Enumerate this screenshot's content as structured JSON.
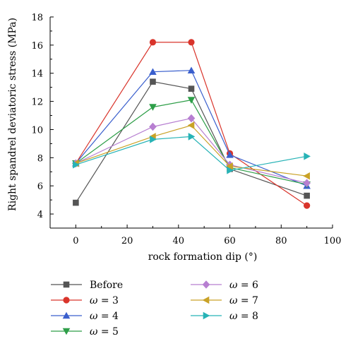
{
  "chart_data": {
    "type": "line",
    "xlabel": "rock formation dip (°)",
    "ylabel": "Right spandrel deviatoric stress (MPa)",
    "xlim": [
      -10,
      100
    ],
    "ylim": [
      3,
      18
    ],
    "xticks": [
      0,
      20,
      40,
      60,
      80,
      100
    ],
    "yticks": [
      4,
      6,
      8,
      10,
      12,
      14,
      16,
      18
    ],
    "x": [
      0,
      30,
      45,
      60,
      90
    ],
    "grid": false,
    "legend_position": "bottom",
    "series": [
      {
        "name": "Before",
        "label_prefix": "",
        "label_value": "Before",
        "color": "#555555",
        "marker": "square",
        "values": [
          4.8,
          13.4,
          12.9,
          7.2,
          5.3
        ]
      },
      {
        "name": "ω = 3",
        "label_prefix": "ω",
        "label_value": " = 3",
        "color": "#d9342b",
        "marker": "circle",
        "values": [
          7.6,
          16.2,
          16.2,
          8.3,
          4.6
        ]
      },
      {
        "name": "ω = 4",
        "label_prefix": "ω",
        "label_value": " = 4",
        "color": "#3a5fcd",
        "marker": "triangle-up",
        "values": [
          7.6,
          14.1,
          14.2,
          8.2,
          6.0
        ]
      },
      {
        "name": "ω = 5",
        "label_prefix": "ω",
        "label_value": " = 5",
        "color": "#2e9e48",
        "marker": "triangle-down",
        "values": [
          7.6,
          11.6,
          12.1,
          7.3,
          6.1
        ]
      },
      {
        "name": "ω = 6",
        "label_prefix": "ω",
        "label_value": " = 6",
        "color": "#b77fd1",
        "marker": "diamond",
        "values": [
          7.6,
          10.2,
          10.8,
          7.5,
          6.2
        ]
      },
      {
        "name": "ω = 7",
        "label_prefix": "ω",
        "label_value": " = 7",
        "color": "#c9a227",
        "marker": "triangle-left",
        "values": [
          7.6,
          9.5,
          10.3,
          7.4,
          6.7
        ]
      },
      {
        "name": "ω = 8",
        "label_prefix": "ω",
        "label_value": " = 8",
        "color": "#27b3b6",
        "marker": "triangle-right",
        "values": [
          7.5,
          9.3,
          9.5,
          7.1,
          8.1
        ]
      }
    ]
  }
}
